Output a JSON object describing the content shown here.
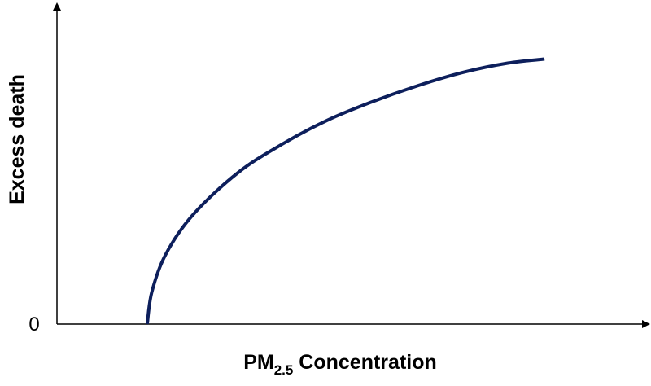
{
  "chart_data": {
    "type": "line",
    "title": "",
    "xlabel": {
      "main": "PM",
      "subscript": "2.5",
      "suffix": " Concentration"
    },
    "ylabel": "Excess death",
    "y_ticks": [
      "0"
    ],
    "x_ticks": [],
    "axis_color": "#000000",
    "grid": false,
    "legend": "none",
    "curve_shape": "concave, rising from a threshold on the x-axis and leveling off",
    "series": [
      {
        "color": "#0d1f5c",
        "x": [
          1.0,
          1.05,
          1.2,
          1.5,
          2.0,
          2.5,
          3.0,
          3.5,
          4.0,
          4.5,
          5.0,
          5.4
        ],
        "y": [
          0.0,
          0.12,
          0.26,
          0.41,
          0.57,
          0.68,
          0.77,
          0.84,
          0.9,
          0.95,
          0.985,
          1.0
        ]
      }
    ]
  }
}
